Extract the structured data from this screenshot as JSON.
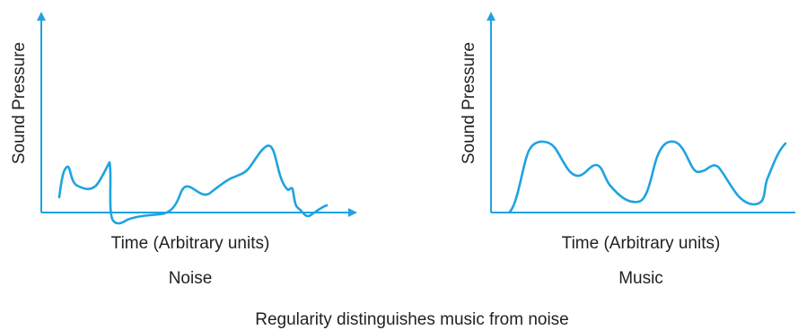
{
  "caption": "Regularity distinguishes music from noise",
  "colors": {
    "curve": "#1fa3e0",
    "axis": "#1fa3e0",
    "text": "#231f20"
  },
  "panels": [
    {
      "name": "noise",
      "ylabel": "Sound Pressure",
      "xlabel": "Time (Arbitrary units)",
      "title": "Noise",
      "shape": "irregular"
    },
    {
      "name": "music",
      "ylabel": "Sound Pressure",
      "xlabel": "Time (Arbitrary units)",
      "title": "Music",
      "shape": "regular"
    }
  ]
}
